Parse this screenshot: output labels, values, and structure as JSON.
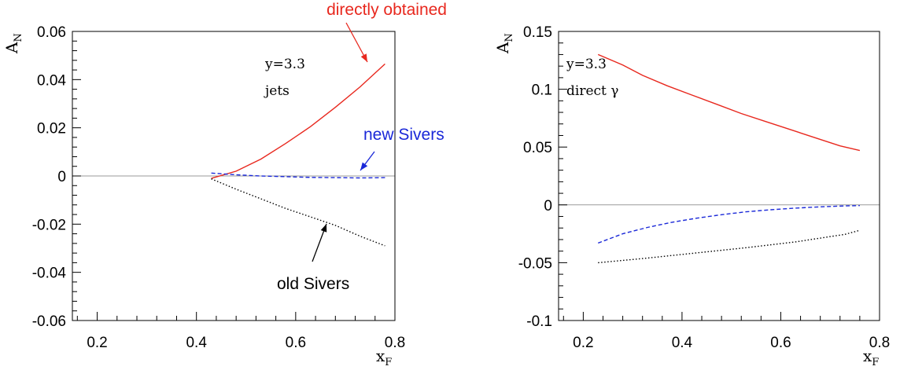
{
  "chart_data": [
    {
      "type": "line",
      "xlabel": "x",
      "xlabel_sub": "F",
      "ylabel": "A",
      "ylabel_sub": "N",
      "xlim": [
        0.15,
        0.8
      ],
      "ylim": [
        -0.06,
        0.06
      ],
      "x_ticks": [
        0.2,
        0.4,
        0.6,
        0.8
      ],
      "x_tick_labels": [
        "0.2",
        "0.4",
        "0.6",
        "0.8"
      ],
      "y_ticks": [
        -0.06,
        -0.04,
        -0.02,
        0,
        0.02,
        0.04,
        0.06
      ],
      "y_tick_labels": [
        "-0.06",
        "-0.04",
        "-0.02",
        "0",
        "0.02",
        "0.04",
        "0.06"
      ],
      "grid": false,
      "zero_line": true,
      "inset_text": [
        "y=3.3",
        "jets"
      ],
      "series": [
        {
          "color": "#e8281e",
          "dash": "solid",
          "x": [
            0.43,
            0.48,
            0.53,
            0.58,
            0.63,
            0.68,
            0.73,
            0.78
          ],
          "y": [
            -0.001,
            0.002,
            0.007,
            0.0135,
            0.0205,
            0.0285,
            0.037,
            0.0465
          ]
        },
        {
          "color": "#1a28d8",
          "dash": "dashed",
          "x": [
            0.43,
            0.48,
            0.53,
            0.58,
            0.63,
            0.68,
            0.73,
            0.78
          ],
          "y": [
            0.0012,
            0.0005,
            0.0,
            -0.0003,
            -0.0006,
            -0.0007,
            -0.0008,
            -0.0007
          ]
        },
        {
          "color": "#000000",
          "dash": "dotted",
          "x": [
            0.43,
            0.48,
            0.53,
            0.58,
            0.63,
            0.68,
            0.73,
            0.78
          ],
          "y": [
            -0.0012,
            -0.0055,
            -0.0095,
            -0.0135,
            -0.017,
            -0.0205,
            -0.025,
            -0.029
          ]
        }
      ],
      "annotations": [
        {
          "text": "directly obtained",
          "color": "#e8281e"
        },
        {
          "text": "new Sivers",
          "color": "#1a28d8"
        },
        {
          "text": "old Sivers",
          "color": "#000000"
        }
      ]
    },
    {
      "type": "line",
      "xlabel": "x",
      "xlabel_sub": "F",
      "ylabel": "A",
      "ylabel_sub": "N",
      "xlim": [
        0.15,
        0.8
      ],
      "ylim": [
        -0.1,
        0.15
      ],
      "x_ticks": [
        0.2,
        0.4,
        0.6,
        0.8
      ],
      "x_tick_labels": [
        "0.2",
        "0.4",
        "0.6",
        "0.8"
      ],
      "y_ticks": [
        -0.1,
        -0.05,
        0,
        0.05,
        0.1,
        0.15
      ],
      "y_tick_labels": [
        "-0.1",
        "-0.05",
        "0",
        "0.05",
        "0.1",
        "0.15"
      ],
      "grid": false,
      "zero_line": true,
      "inset_text": [
        "y=3.3",
        "direct γ"
      ],
      "series": [
        {
          "color": "#e8281e",
          "dash": "solid",
          "x": [
            0.23,
            0.28,
            0.32,
            0.37,
            0.42,
            0.47,
            0.52,
            0.57,
            0.62,
            0.67,
            0.72,
            0.76
          ],
          "y": [
            0.13,
            0.121,
            0.112,
            0.103,
            0.095,
            0.087,
            0.079,
            0.072,
            0.065,
            0.058,
            0.051,
            0.047
          ]
        },
        {
          "color": "#1a28d8",
          "dash": "dashed",
          "x": [
            0.23,
            0.28,
            0.33,
            0.38,
            0.43,
            0.48,
            0.53,
            0.58,
            0.63,
            0.68,
            0.73,
            0.76
          ],
          "y": [
            -0.033,
            -0.025,
            -0.0195,
            -0.015,
            -0.0115,
            -0.0085,
            -0.006,
            -0.0042,
            -0.0028,
            -0.0017,
            -0.0009,
            -0.0006
          ]
        },
        {
          "color": "#000000",
          "dash": "dotted",
          "x": [
            0.23,
            0.33,
            0.43,
            0.53,
            0.63,
            0.73,
            0.76
          ],
          "y": [
            -0.05,
            -0.046,
            -0.0415,
            -0.037,
            -0.032,
            -0.0255,
            -0.022
          ]
        }
      ]
    }
  ]
}
